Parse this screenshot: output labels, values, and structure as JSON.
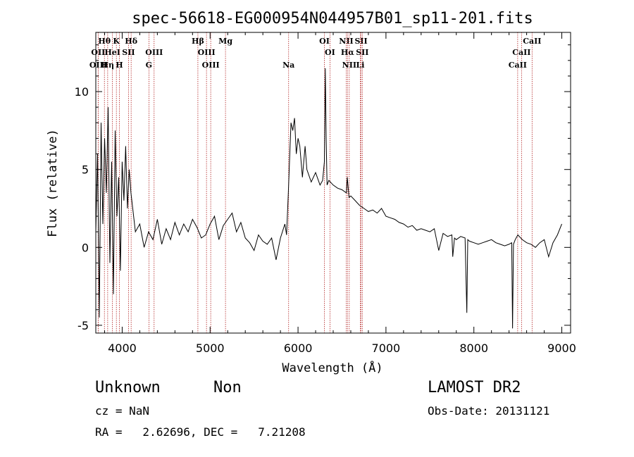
{
  "chart_data": {
    "type": "line",
    "title": "spec-56618-EG000954N044957B01_sp11-201.fits",
    "xlabel": "Wavelength (Å)",
    "ylabel": "Flux (relative)",
    "xlim": [
      3700,
      9100
    ],
    "ylim": [
      -5.5,
      13.8
    ],
    "xticks": [
      4000,
      5000,
      6000,
      7000,
      8000,
      9000
    ],
    "yticks": [
      -5,
      0,
      5,
      10
    ],
    "series": [
      {
        "x": [
          3700,
          3720,
          3740,
          3760,
          3780,
          3800,
          3820,
          3840,
          3860,
          3880,
          3900,
          3920,
          3940,
          3960,
          3980,
          4000,
          4020,
          4040,
          4060,
          4080,
          4100,
          4150,
          4200,
          4250,
          4300,
          4350,
          4400,
          4450,
          4500,
          4550,
          4600,
          4650,
          4700,
          4750,
          4800,
          4850,
          4900,
          4950,
          5000,
          5050,
          5100,
          5150,
          5200,
          5250,
          5300,
          5350,
          5400,
          5450,
          5500,
          5550,
          5600,
          5650,
          5700,
          5750,
          5800,
          5850,
          5870,
          5890,
          5910,
          5920,
          5940,
          5960,
          5980,
          6000,
          6020,
          6050,
          6080,
          6100,
          6150,
          6200,
          6250,
          6280,
          6300,
          6310,
          6320,
          6330,
          6350,
          6400,
          6450,
          6500,
          6550,
          6560,
          6580,
          6600,
          6650,
          6700,
          6750,
          6800,
          6850,
          6900,
          6950,
          7000,
          7050,
          7100,
          7150,
          7200,
          7250,
          7300,
          7350,
          7400,
          7450,
          7500,
          7550,
          7600,
          7650,
          7700,
          7750,
          7760,
          7780,
          7800,
          7850,
          7900,
          7920,
          7930,
          7950,
          8000,
          8050,
          8100,
          8150,
          8200,
          8250,
          8300,
          8350,
          8400,
          8430,
          8440,
          8450,
          8470,
          8500,
          8550,
          8600,
          8650,
          8700,
          8750,
          8800,
          8850,
          8900,
          8950,
          9000
        ],
        "values": [
          1.0,
          6.0,
          -4.5,
          8.0,
          1.5,
          7.0,
          3.5,
          9.0,
          -1.0,
          5.5,
          -3.0,
          7.5,
          2.0,
          4.5,
          -1.5,
          5.5,
          3.0,
          6.5,
          2.5,
          5.0,
          3.5,
          1.0,
          1.5,
          0.0,
          1.0,
          0.5,
          1.8,
          0.2,
          1.2,
          0.5,
          1.6,
          0.8,
          1.5,
          1.0,
          1.8,
          1.3,
          0.6,
          0.8,
          1.5,
          2.0,
          0.5,
          1.4,
          1.8,
          2.2,
          1.0,
          1.6,
          0.6,
          0.3,
          -0.2,
          0.8,
          0.4,
          0.2,
          0.6,
          -0.8,
          0.6,
          1.5,
          0.8,
          3.5,
          6.5,
          8.0,
          7.5,
          8.3,
          6.0,
          7.0,
          6.5,
          4.5,
          6.5,
          5.0,
          4.2,
          4.8,
          4.0,
          4.3,
          5.5,
          11.5,
          7.0,
          4.0,
          4.3,
          4.0,
          3.8,
          3.7,
          3.5,
          4.5,
          3.2,
          3.3,
          3.0,
          2.7,
          2.5,
          2.3,
          2.4,
          2.2,
          2.5,
          2.0,
          1.9,
          1.8,
          1.6,
          1.5,
          1.3,
          1.4,
          1.1,
          1.2,
          1.1,
          1.0,
          1.2,
          -0.2,
          0.9,
          0.7,
          0.8,
          -0.6,
          0.6,
          0.5,
          0.7,
          0.6,
          -4.2,
          0.5,
          0.4,
          0.3,
          0.2,
          0.3,
          0.4,
          0.5,
          0.3,
          0.2,
          0.1,
          0.2,
          0.3,
          -5.2,
          0.2,
          0.5,
          0.8,
          0.5,
          0.3,
          0.2,
          0.0,
          0.3,
          0.5,
          -0.6,
          0.3,
          0.8,
          1.5
        ]
      }
    ],
    "lines": [
      {
        "label": "Hθ",
        "wl": 3798,
        "row": 0
      },
      {
        "label": "K",
        "wl": 3934,
        "row": 0
      },
      {
        "label": "Hδ",
        "wl": 4102,
        "row": 0
      },
      {
        "label": "Hβ",
        "wl": 4861,
        "row": 0
      },
      {
        "label": "Mg",
        "wl": 5175,
        "row": 0
      },
      {
        "label": "OI",
        "wl": 6300,
        "row": 0
      },
      {
        "label": "NII",
        "wl": 6548,
        "row": 0
      },
      {
        "label": "SII",
        "wl": 6717,
        "row": 0
      },
      {
        "label": "CaII",
        "wl": 8662,
        "row": 0
      },
      {
        "label": "OII",
        "wl": 3727,
        "row": 1
      },
      {
        "label": "HeI",
        "wl": 3889,
        "row": 1
      },
      {
        "label": "SII",
        "wl": 4072,
        "row": 1
      },
      {
        "label": "OIII",
        "wl": 4363,
        "row": 1
      },
      {
        "label": "OIII",
        "wl": 4959,
        "row": 1
      },
      {
        "label": "OI",
        "wl": 6363,
        "row": 1
      },
      {
        "label": "Hα",
        "wl": 6563,
        "row": 1
      },
      {
        "label": "SII",
        "wl": 6731,
        "row": 1
      },
      {
        "label": "CaII",
        "wl": 8542,
        "row": 1
      },
      {
        "label": "OIII",
        "wl": 3727,
        "row": 2
      },
      {
        "label": "Hη",
        "wl": 3835,
        "row": 2
      },
      {
        "label": "H",
        "wl": 3968,
        "row": 2
      },
      {
        "label": "G",
        "wl": 4304,
        "row": 2
      },
      {
        "label": "OIII",
        "wl": 5007,
        "row": 2
      },
      {
        "label": "Na",
        "wl": 5893,
        "row": 2
      },
      {
        "label": "NII",
        "wl": 6583,
        "row": 2
      },
      {
        "label": "Li",
        "wl": 6708,
        "row": 2
      },
      {
        "label": "CaII",
        "wl": 8498,
        "row": 2
      }
    ]
  },
  "info": {
    "classification": "Unknown",
    "subclass": "Non",
    "survey": "LAMOST DR2",
    "cz": "cz = NaN",
    "obs_date": "Obs-Date: 20131121",
    "radec": "RA =   2.62696, DEC =   7.21208"
  }
}
